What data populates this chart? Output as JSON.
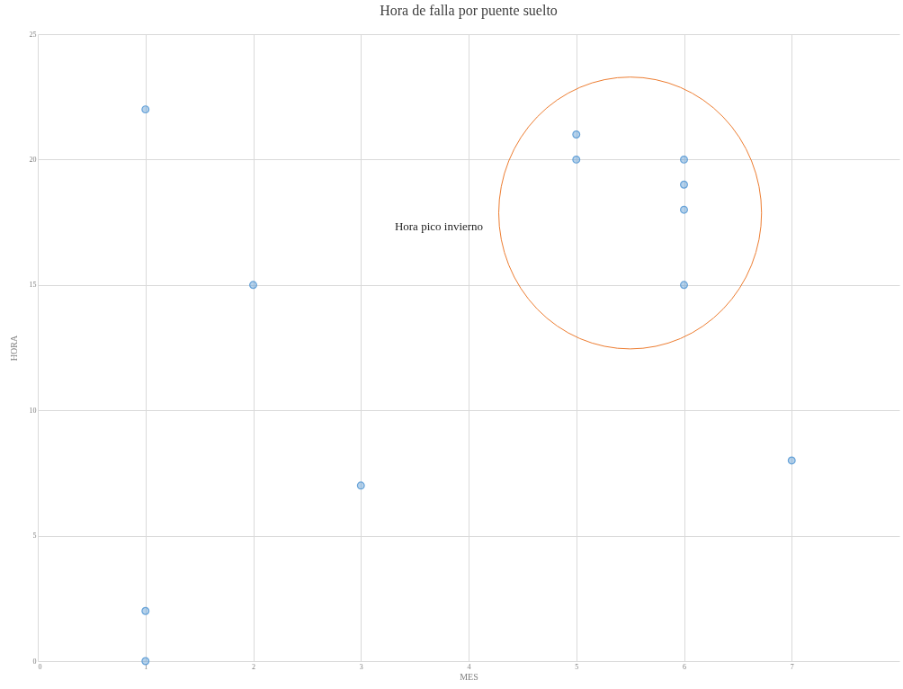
{
  "chart_data": {
    "type": "scatter",
    "title": "Hora de falla por puente suelto",
    "xlabel": "MES",
    "ylabel": "HORA",
    "x": [
      1,
      1,
      1,
      2,
      3,
      5,
      5,
      6,
      6,
      6,
      6,
      7
    ],
    "values": [
      22,
      2,
      0,
      15,
      7,
      21,
      20,
      20,
      19,
      18,
      15,
      8
    ],
    "color": "#5b9bd5",
    "marker": "circle",
    "grid": true,
    "xlim": [
      0,
      8
    ],
    "xticks": [
      0,
      1,
      2,
      3,
      4,
      5,
      6,
      7
    ],
    "ylim": [
      0,
      25
    ],
    "yticks": [
      0,
      5,
      10,
      15,
      20,
      25
    ],
    "annotations": [
      "Hora pico invierno"
    ]
  }
}
